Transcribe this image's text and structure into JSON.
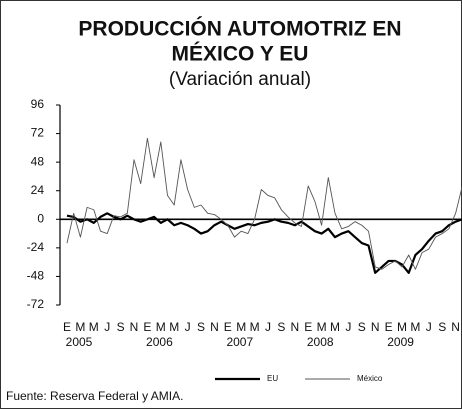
{
  "chart_data": {
    "type": "line",
    "title": "PRODUCCIÓN AUTOMOTRIZ EN",
    "title_line2": "MÉXICO Y EU",
    "subtitle": "(Variación anual)",
    "source": "Fuente: Reserva Federal  y AMIA.",
    "categories": [
      "E",
      null,
      "M",
      null,
      "M",
      null,
      "J",
      null,
      "S",
      null,
      "N",
      null,
      "E",
      null,
      "M",
      null,
      "M",
      null,
      "J",
      null,
      "S",
      null,
      "N",
      null,
      "E",
      null,
      "M",
      null,
      "M",
      null,
      "J",
      null,
      "S",
      null,
      "N",
      null,
      "E",
      null,
      "M",
      null,
      "M",
      null,
      "J",
      null,
      "S",
      null,
      "N",
      null,
      "E",
      null,
      "M",
      null,
      "M",
      null,
      "J",
      null,
      "S",
      null,
      "N",
      null
    ],
    "years": [
      "2005",
      "2006",
      "2007",
      "2008",
      "2009"
    ],
    "ylim": [
      -72,
      96
    ],
    "yticks": [
      96,
      72,
      48,
      24,
      0,
      -24,
      -48,
      -72
    ],
    "series": [
      {
        "name": "EU",
        "color": "#000000",
        "width": 2.2,
        "values": [
          3,
          2,
          -2,
          0,
          -3,
          2,
          5,
          2,
          0,
          3,
          0,
          -2,
          0,
          2,
          -3,
          0,
          -5,
          -3,
          -5,
          -8,
          -12,
          -10,
          -5,
          -2,
          -5,
          -8,
          -6,
          -4,
          -5,
          -3,
          -2,
          0,
          -2,
          -3,
          -5,
          -2,
          -6,
          -10,
          -12,
          -8,
          -15,
          -12,
          -10,
          -15,
          -20,
          -22,
          -45,
          -40,
          -35,
          -35,
          -38,
          -45,
          -30,
          -25,
          -18,
          -12,
          -10,
          -5,
          -2,
          0
        ]
      },
      {
        "name": "México",
        "color": "#555555",
        "width": 0.9,
        "values": [
          -20,
          5,
          -15,
          10,
          8,
          -10,
          -12,
          3,
          2,
          5,
          50,
          30,
          68,
          35,
          65,
          20,
          12,
          50,
          25,
          10,
          12,
          5,
          4,
          0,
          -5,
          -15,
          -10,
          -12,
          0,
          25,
          20,
          18,
          8,
          2,
          -3,
          -6,
          28,
          15,
          -5,
          35,
          5,
          -8,
          -6,
          -2,
          -5,
          -10,
          -40,
          -42,
          -38,
          -35,
          -40,
          -30,
          -42,
          -28,
          -25,
          -15,
          -12,
          -8,
          5,
          28
        ]
      }
    ]
  }
}
